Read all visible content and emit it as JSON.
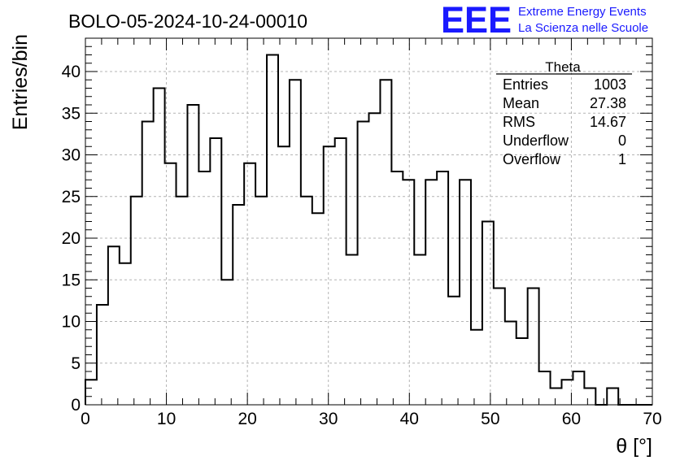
{
  "header": {
    "run_title": "BOLO-05-2024-10-24-00010",
    "logo_letters": "EEE",
    "logo_line1": "Extreme Energy Events",
    "logo_line2": "La Scienza nelle Scuole",
    "logo_color": "#1a1aff"
  },
  "stats_box": {
    "title": "Theta",
    "rows": [
      {
        "label": "Entries",
        "value": "1003"
      },
      {
        "label": "Mean",
        "value": "27.38"
      },
      {
        "label": "RMS",
        "value": "14.67"
      },
      {
        "label": "Underflow",
        "value": "0"
      },
      {
        "label": "Overflow",
        "value": "1"
      }
    ]
  },
  "chart_data": {
    "type": "bar",
    "style": "step-histogram",
    "title": "BOLO-05-2024-10-24-00010",
    "xlabel": "θ [°]",
    "ylabel": "Entries/bin",
    "xlim": [
      0,
      70
    ],
    "ylim": [
      0,
      44
    ],
    "x_ticks": [
      0,
      10,
      20,
      30,
      40,
      50,
      60,
      70
    ],
    "y_ticks": [
      0,
      5,
      10,
      15,
      20,
      25,
      30,
      35,
      40
    ],
    "grid": true,
    "line_color": "#000000",
    "bin_width": 1.4,
    "bin_edges_start": 0,
    "values": [
      3,
      12,
      19,
      17,
      25,
      34,
      38,
      29,
      25,
      36,
      28,
      32,
      15,
      24,
      29,
      25,
      42,
      31,
      39,
      25,
      23,
      31,
      32,
      18,
      34,
      35,
      39,
      28,
      27,
      18,
      27,
      28,
      13,
      27,
      9,
      22,
      14,
      10,
      8,
      14,
      4,
      2,
      3,
      4,
      2,
      0,
      2,
      0,
      0,
      0
    ]
  }
}
